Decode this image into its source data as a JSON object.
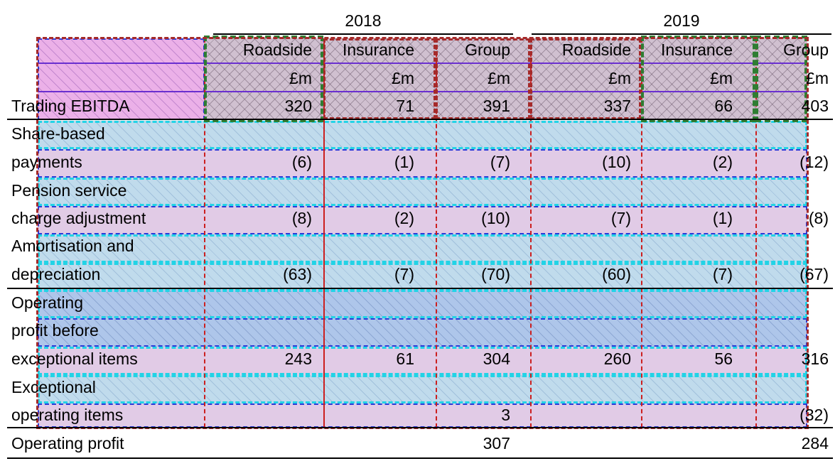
{
  "table": {
    "year_headers": [
      "2018",
      "2019"
    ],
    "segment_headers": [
      "Roadside",
      "Insurance",
      "Group",
      "Roadside",
      "Insurance",
      "Group"
    ],
    "unit_headers": [
      "£m",
      "£m",
      "£m",
      "£m",
      "£m",
      "£m"
    ],
    "rows": [
      {
        "label_lines": [
          "Trading EBITDA"
        ],
        "values": [
          "320",
          "71",
          "391",
          "337",
          "66",
          "403"
        ]
      },
      {
        "label_lines": [
          "Share-based",
          "payments"
        ],
        "values": [
          "(6)",
          "(1)",
          "(7)",
          "(10)",
          "(2)",
          "(12)"
        ]
      },
      {
        "label_lines": [
          "Pension service",
          "charge adjustment"
        ],
        "values": [
          "(8)",
          "(2)",
          "(10)",
          "(7)",
          "(1)",
          "(8)"
        ]
      },
      {
        "label_lines": [
          "Amortisation and",
          "depreciation"
        ],
        "values": [
          "(63)",
          "(7)",
          "(70)",
          "(60)",
          "(7)",
          "(67)"
        ]
      },
      {
        "label_lines": [
          "Operating",
          "profit before",
          "exceptional items"
        ],
        "values": [
          "243",
          "61",
          "304",
          "260",
          "56",
          "316"
        ]
      },
      {
        "label_lines": [
          "Exceptional",
          "operating items"
        ],
        "values": [
          "",
          "",
          "3",
          "",
          "",
          "(32)"
        ]
      },
      {
        "label_lines": [
          "Operating profit"
        ],
        "values": [
          "",
          "",
          "307",
          "",
          "",
          "284"
        ]
      }
    ]
  },
  "colors": {
    "overlay_magenta": "#da70d6",
    "overlay_grey": "#aa8caa",
    "overlay_pink": "#c8a0d2",
    "overlay_blue": "#8cbedc",
    "border_red": "#cc1f1f",
    "border_darkred": "#a52a2a",
    "border_green": "#2e7d32",
    "border_cyan": "#22d3e6",
    "border_blue": "#2b3bd8"
  }
}
